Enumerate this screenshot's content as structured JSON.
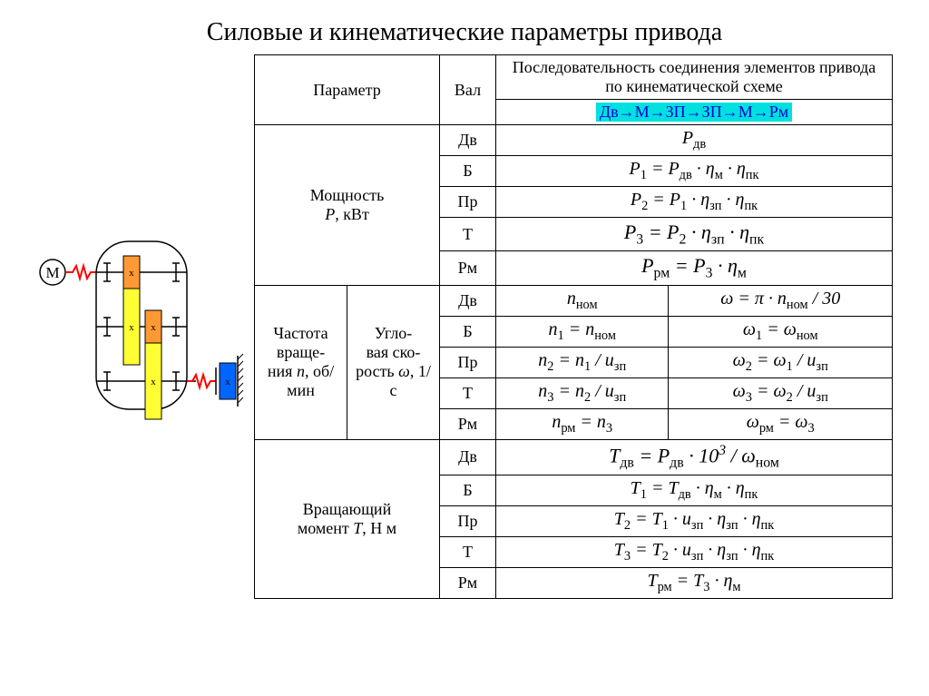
{
  "title": "Силовые и кинематические параметры привода",
  "headers": {
    "param": "Параметр",
    "shaft": "Вал",
    "sequence": "Последовательность соединения элементов  привода по кинематической схеме",
    "chain": "Дв→М→ЗП→ЗП→М→Рм"
  },
  "sections": {
    "power": {
      "label": "Мощность\nP, кВт"
    },
    "speed": {
      "label_n": "Частота враще-ния n, об/мин",
      "label_w": "Угло-вая ско-рость ω, 1/с"
    },
    "torque": {
      "label": "Вращающий момент T, Н м"
    }
  },
  "shafts": {
    "dv": "Дв",
    "b": "Б",
    "pr": "Пр",
    "t": "Т",
    "rm": "Рм"
  },
  "formulas": {
    "p_dv": "P|дв",
    "p1": "P|1| = P|дв| · η|м| · η|пк",
    "p2": "P|2| = P|1| · η|зп| · η|пк",
    "p3": "P|3| = P|2| · η|зп| · η|пк",
    "prm": "P|рм| = P|3| · η|м",
    "n_nom": "n|ном",
    "w_nom": "ω = π · n|ном| / 30",
    "n1": "n|1| = n|ном",
    "w1": "ω|1| = ω|ном",
    "n2": "n|2| = n|1| / u|зп",
    "w2": "ω|2| = ω|1| / u|зп",
    "n3": "n|3| = n|2| / u|зп",
    "w3": "ω|3| = ω|2| / u|зп",
    "nrm": "n|рм| = n|3",
    "wrm": "ω|рм| = ω|3",
    "t_dv": "T|дв| = P|дв| · 10^3 / ω|ном",
    "t1": "T|1| = T|дв| · η|м| · η|пк",
    "t2": "T|2| = T|1| · u|зп| · η|зп| · η|пк",
    "t3": "T|3| = T|2| · u|зп| · η|зп| · η|пк",
    "trm": "T|рм| = T|3| · η|м"
  },
  "diagram": {
    "colors": {
      "motor": "#ffffff",
      "coupling": "#ff0000",
      "gear_small": "#ff9933",
      "gear_large": "#ffff33",
      "output": "#0066ff",
      "stroke": "#000000"
    }
  }
}
